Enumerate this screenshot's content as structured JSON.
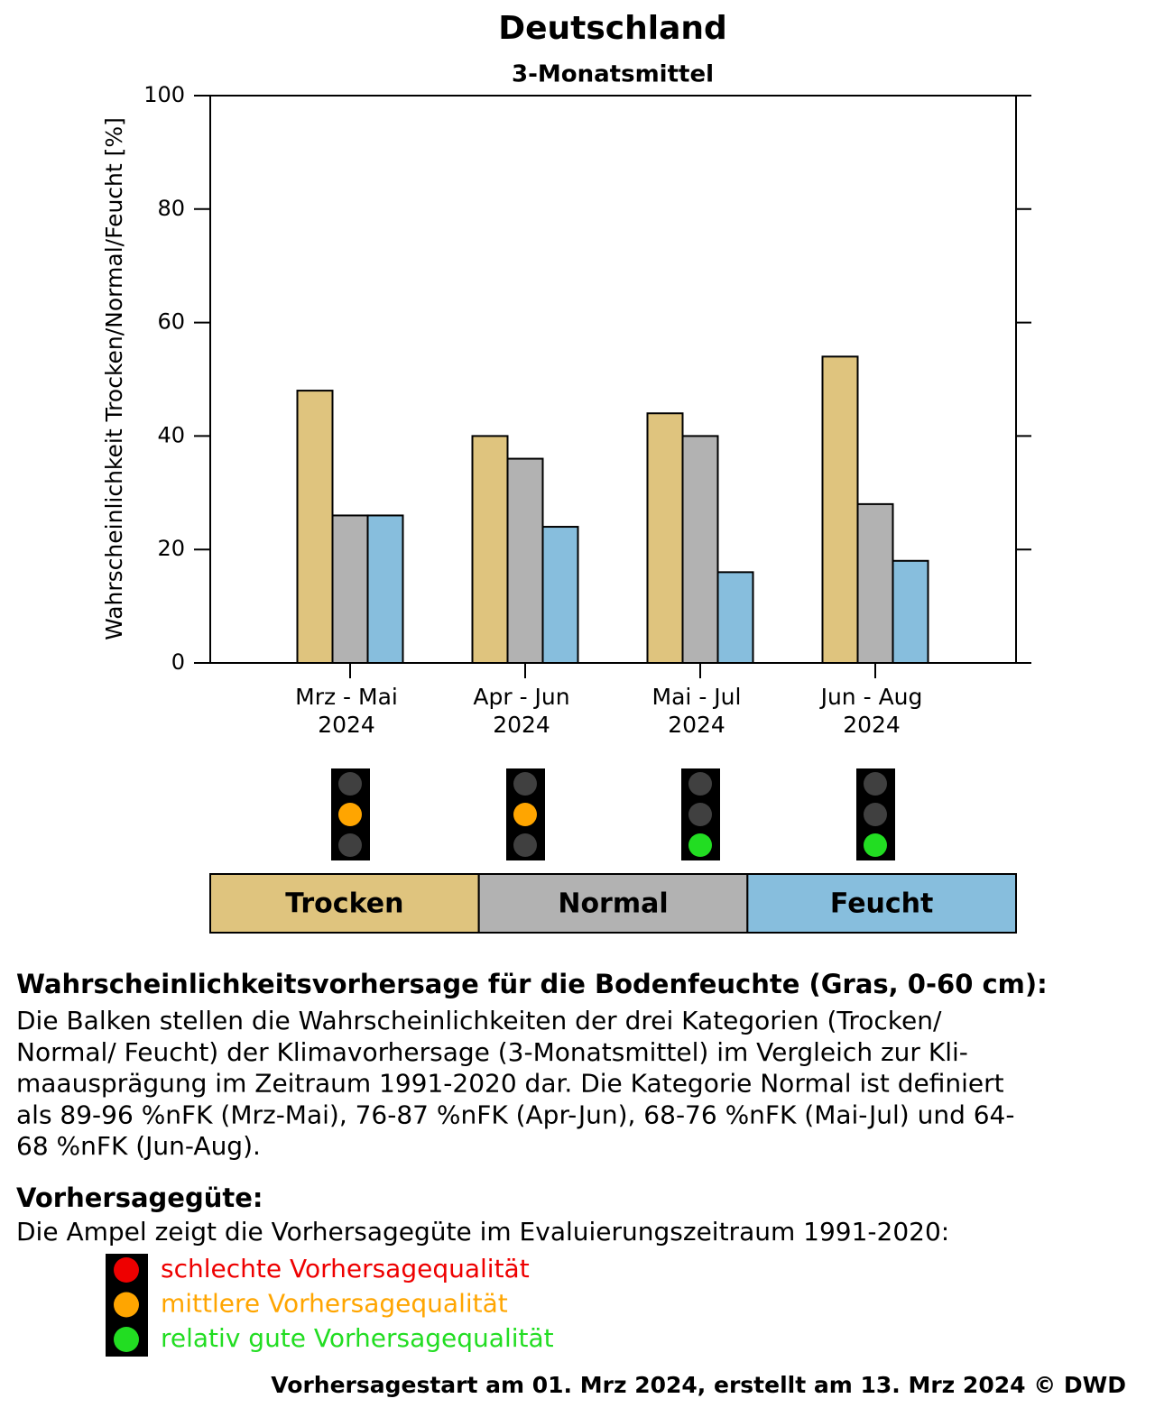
{
  "chart_data": {
    "type": "bar",
    "title": "Deutschland",
    "subtitle": "3-Monatsmittel",
    "y_label": "Wahrscheinlichkeit Trocken/Normal/Feucht [%]",
    "categories": [
      [
        "Mrz - Mai",
        "2024"
      ],
      [
        "Apr - Jun",
        "2024"
      ],
      [
        "Mai - Jul",
        "2024"
      ],
      [
        "Jun - Aug",
        "2024"
      ]
    ],
    "series": [
      {
        "name": "Trocken",
        "color": "#dfc47e",
        "values": [
          48,
          40,
          44,
          54
        ]
      },
      {
        "name": "Normal",
        "color": "#b2b2b2",
        "values": [
          26,
          36,
          40,
          28
        ]
      },
      {
        "name": "Feucht",
        "color": "#87bedd",
        "values": [
          26,
          24,
          16,
          18
        ]
      }
    ],
    "ylim": [
      0,
      100
    ],
    "yticks": [
      0,
      20,
      40,
      60,
      80,
      100
    ],
    "signal_colors": [
      "#ffa500",
      "#ffa500",
      "#22dd22",
      "#22dd22"
    ],
    "signal_off_color": "#404040"
  },
  "description": {
    "heading": "Wahrscheinlichkeitsvorhersage für die Bodenfeuchte (Gras, 0-60 cm):",
    "lines": [
      "Die Balken stellen die Wahrscheinlichkeiten der drei Kategorien (Trocken/",
      "Normal/ Feucht) der Klimavorhersage (3-Monatsmittel) im Vergleich zur Kli-",
      "maausprägung im Zeitraum 1991-2020 dar. Die Kategorie Normal ist definiert",
      "als 89-96 %nFK (Mrz-Mai), 76-87 %nFK (Apr-Jun), 68-76 %nFK (Mai-Jul) und 64-",
      "68 %nFK (Jun-Aug)."
    ]
  },
  "quality": {
    "heading": "Vorhersagegüte:",
    "text": "Die Ampel zeigt die Vorhersagegüte im Evaluierungszeitraum 1991-2020:",
    "items": [
      {
        "label": "schlechte Vorhersagequalität",
        "color": "#ee0000"
      },
      {
        "label": "mittlere Vorhersagequalität",
        "color": "#ffa500"
      },
      {
        "label": "relativ gute Vorhersagequalität",
        "color": "#22dd22"
      }
    ]
  },
  "footer": "Vorhersagestart am 01. Mrz 2024, erstellt am 13. Mrz 2024 © DWD"
}
